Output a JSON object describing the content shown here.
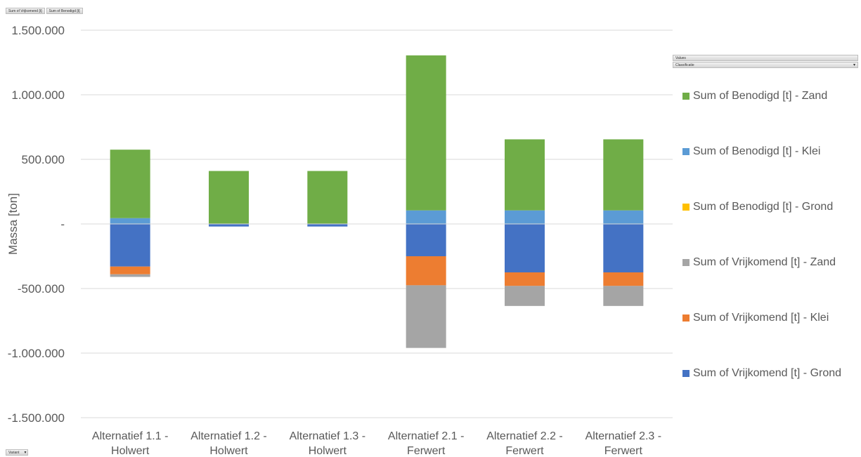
{
  "pivot": {
    "data_fields": [
      "Sum of Vrijkomend [t]",
      "Sum of Benodigd [t]"
    ],
    "axis_field": "Variant",
    "legend_fields": [
      "Values",
      "Classificatie"
    ]
  },
  "chart_data": {
    "type": "bar",
    "stacked": true,
    "ylabel": "Massa [ton]",
    "xlabel": "",
    "ylim": [
      -1500000,
      1500000
    ],
    "yticks": [
      1500000,
      1000000,
      500000,
      0,
      -500000,
      -1000000,
      -1500000
    ],
    "ytick_labels": [
      "1.500.000",
      "1.000.000",
      "500.000",
      "-",
      "-500.000",
      "-1.000.000",
      "-1.500.000"
    ],
    "grid": true,
    "legend_position": "right",
    "categories": [
      [
        "Alternatief 1.1 -",
        "Holwert"
      ],
      [
        "Alternatief 1.2 -",
        "Holwert"
      ],
      [
        "Alternatief 1.3 -",
        "Holwert"
      ],
      [
        "Alternatief 2.1 -",
        "Ferwert"
      ],
      [
        "Alternatief 2.2 -",
        "Ferwert"
      ],
      [
        "Alternatief 2.3 -",
        "Ferwert"
      ]
    ],
    "series": [
      {
        "name": "Sum of Benodigd [t] - Zand",
        "color": "#70ad47",
        "values": [
          530000,
          410000,
          410000,
          1200000,
          550000,
          550000
        ]
      },
      {
        "name": "Sum of Benodigd [t] - Klei",
        "color": "#5b9bd5",
        "values": [
          45000,
          0,
          0,
          105000,
          105000,
          105000
        ]
      },
      {
        "name": "Sum of Benodigd [t] - Grond",
        "color": "#ffc000",
        "values": [
          0,
          0,
          0,
          0,
          0,
          0
        ]
      },
      {
        "name": "Sum of Vrijkomend [t] - Zand",
        "color": "#a5a5a5",
        "values": [
          -20000,
          0,
          0,
          -485000,
          -155000,
          -155000
        ]
      },
      {
        "name": "Sum of Vrijkomend [t] - Klei",
        "color": "#ed7d31",
        "values": [
          -60000,
          0,
          0,
          -225000,
          -105000,
          -105000
        ]
      },
      {
        "name": "Sum of Vrijkomend [t] - Grond",
        "color": "#4472c4",
        "values": [
          -330000,
          -20000,
          -20000,
          -250000,
          -375000,
          -375000
        ]
      }
    ],
    "stack_order": {
      "positive": [
        1,
        0
      ],
      "negative": [
        5,
        4,
        3
      ]
    }
  }
}
